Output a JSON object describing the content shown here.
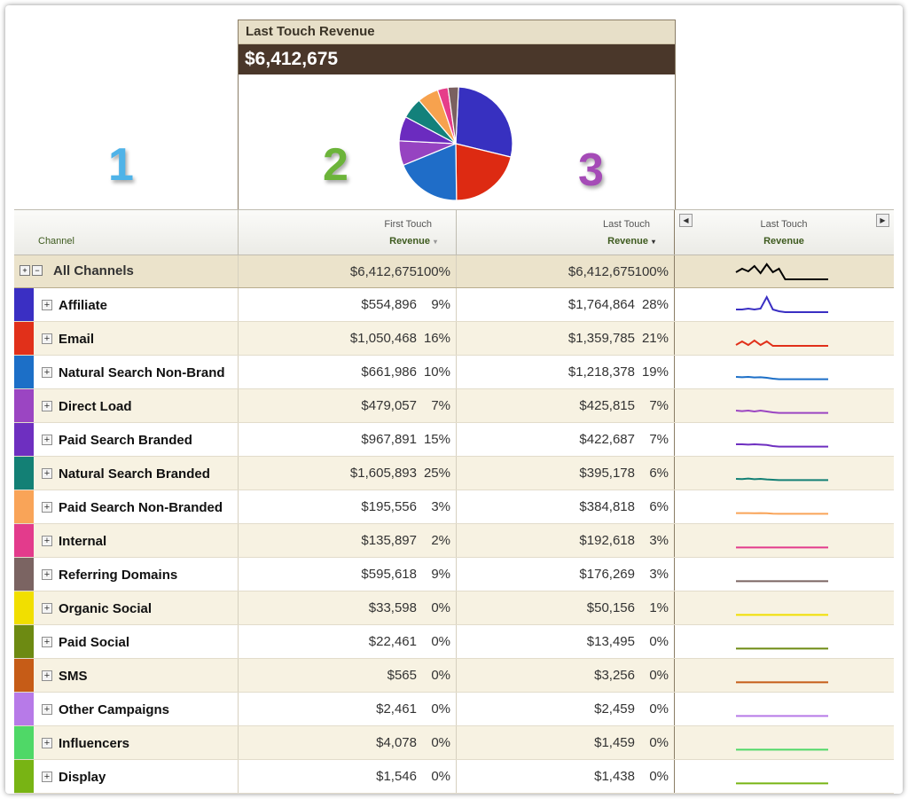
{
  "panel": {
    "title": "Last Touch Revenue",
    "value": "$6,412,675"
  },
  "annotations": [
    {
      "label": "1",
      "color": "#4fb3e8"
    },
    {
      "label": "2",
      "color": "#6cb43a"
    },
    {
      "label": "3",
      "color": "#a54bb7"
    }
  ],
  "pie": [
    {
      "value": 28,
      "color": "#3730c0"
    },
    {
      "value": 21,
      "color": "#dd2a12"
    },
    {
      "value": 19,
      "color": "#1f6dc8"
    },
    {
      "value": 7,
      "color": "#9643c1"
    },
    {
      "value": 7,
      "color": "#6b2bbf"
    },
    {
      "value": 6,
      "color": "#13817b"
    },
    {
      "value": 6,
      "color": "#f7a24e"
    },
    {
      "value": 3,
      "color": "#e63d8a"
    },
    {
      "value": 3,
      "color": "#7a6060"
    }
  ],
  "header": {
    "channel": "Channel",
    "first_top": "First Touch",
    "first_bottom": "Revenue",
    "last_top": "Last Touch",
    "last_bottom": "Revenue",
    "spark_top": "Last Touch",
    "spark_bottom": "Revenue"
  },
  "all": {
    "name": "All Channels",
    "first": "$6,412,675",
    "first_pct": "100%",
    "last": "$6,412,675",
    "last_pct": "100%",
    "color": "#000000",
    "trend": [
      0.55,
      0.75,
      0.6,
      0.9,
      0.5,
      1.0,
      0.55,
      0.75,
      0.15,
      0.15,
      0.15,
      0.15,
      0.15,
      0.15,
      0.15,
      0.15
    ]
  },
  "rows": [
    {
      "name": "Affiliate",
      "color": "#3a2fc3",
      "first": "$554,896",
      "first_pct": "9%",
      "last": "$1,764,864",
      "last_pct": "28%",
      "trend": [
        0.3,
        0.3,
        0.35,
        0.3,
        0.35,
        1.0,
        0.3,
        0.2,
        0.15,
        0.15,
        0.15,
        0.15,
        0.15,
        0.15,
        0.15,
        0.15
      ]
    },
    {
      "name": "Email",
      "color": "#e1301a",
      "first": "$1,050,468",
      "first_pct": "16%",
      "last": "$1,359,785",
      "last_pct": "21%",
      "trend": [
        0.2,
        0.4,
        0.2,
        0.45,
        0.2,
        0.4,
        0.15,
        0.15,
        0.15,
        0.15,
        0.15,
        0.15,
        0.15,
        0.15,
        0.15,
        0.15
      ]
    },
    {
      "name": "Natural Search Non-Brand",
      "color": "#1c6fc7",
      "first": "$661,986",
      "first_pct": "10%",
      "last": "$1,218,378",
      "last_pct": "19%",
      "trend": [
        0.3,
        0.28,
        0.3,
        0.27,
        0.28,
        0.25,
        0.2,
        0.17,
        0.17,
        0.17,
        0.17,
        0.17,
        0.17,
        0.17,
        0.17,
        0.17
      ]
    },
    {
      "name": "Direct Load",
      "color": "#9b45c2",
      "first": "$479,057",
      "first_pct": "7%",
      "last": "$425,815",
      "last_pct": "7%",
      "trend": [
        0.3,
        0.27,
        0.3,
        0.25,
        0.3,
        0.25,
        0.2,
        0.17,
        0.17,
        0.17,
        0.17,
        0.17,
        0.17,
        0.17,
        0.17,
        0.17
      ]
    },
    {
      "name": "Paid Search Branded",
      "color": "#6e2fc0",
      "first": "$967,891",
      "first_pct": "15%",
      "last": "$422,687",
      "last_pct": "7%",
      "trend": [
        0.3,
        0.3,
        0.28,
        0.3,
        0.28,
        0.26,
        0.2,
        0.17,
        0.17,
        0.17,
        0.17,
        0.17,
        0.17,
        0.17,
        0.17,
        0.17
      ]
    },
    {
      "name": "Natural Search Branded",
      "color": "#138075",
      "first": "$1,605,893",
      "first_pct": "25%",
      "last": "$395,178",
      "last_pct": "6%",
      "trend": [
        0.25,
        0.24,
        0.27,
        0.23,
        0.25,
        0.22,
        0.2,
        0.18,
        0.18,
        0.18,
        0.18,
        0.18,
        0.18,
        0.18,
        0.18,
        0.18
      ]
    },
    {
      "name": "Paid Search Non-Branded",
      "color": "#f9a458",
      "first": "$195,556",
      "first_pct": "3%",
      "last": "$384,818",
      "last_pct": "6%",
      "trend": [
        0.22,
        0.22,
        0.22,
        0.21,
        0.22,
        0.21,
        0.19,
        0.18,
        0.18,
        0.18,
        0.18,
        0.18,
        0.18,
        0.18,
        0.18,
        0.18
      ]
    },
    {
      "name": "Internal",
      "color": "#e33b8c",
      "first": "$135,897",
      "first_pct": "2%",
      "last": "$192,618",
      "last_pct": "3%",
      "trend": [
        0.18,
        0.18,
        0.18,
        0.18,
        0.18,
        0.18,
        0.18,
        0.18,
        0.18,
        0.18,
        0.18,
        0.18,
        0.18,
        0.18,
        0.18,
        0.18
      ]
    },
    {
      "name": "Referring Domains",
      "color": "#7b6462",
      "first": "$595,618",
      "first_pct": "9%",
      "last": "$176,269",
      "last_pct": "3%",
      "trend": [
        0.18,
        0.18,
        0.18,
        0.18,
        0.18,
        0.18,
        0.18,
        0.18,
        0.18,
        0.18,
        0.18,
        0.18,
        0.18,
        0.18,
        0.18,
        0.18
      ]
    },
    {
      "name": "Organic Social",
      "color": "#f1df00",
      "first": "$33,598",
      "first_pct": "0%",
      "last": "$50,156",
      "last_pct": "1%",
      "trend": [
        0.18,
        0.18,
        0.18,
        0.18,
        0.18,
        0.18,
        0.18,
        0.18,
        0.18,
        0.18,
        0.18,
        0.18,
        0.18,
        0.18,
        0.18,
        0.18
      ]
    },
    {
      "name": "Paid Social",
      "color": "#6d8a12",
      "first": "$22,461",
      "first_pct": "0%",
      "last": "$13,495",
      "last_pct": "0%",
      "trend": [
        0.18,
        0.18,
        0.18,
        0.18,
        0.18,
        0.18,
        0.18,
        0.18,
        0.18,
        0.18,
        0.18,
        0.18,
        0.18,
        0.18,
        0.18,
        0.18
      ]
    },
    {
      "name": "SMS",
      "color": "#c65c17",
      "first": "$565",
      "first_pct": "0%",
      "last": "$3,256",
      "last_pct": "0%",
      "trend": [
        0.18,
        0.18,
        0.18,
        0.18,
        0.18,
        0.18,
        0.18,
        0.18,
        0.18,
        0.18,
        0.18,
        0.18,
        0.18,
        0.18,
        0.18,
        0.18
      ]
    },
    {
      "name": "Other Campaigns",
      "color": "#b77ae8",
      "first": "$2,461",
      "first_pct": "0%",
      "last": "$2,459",
      "last_pct": "0%",
      "trend": [
        0.18,
        0.18,
        0.18,
        0.18,
        0.18,
        0.18,
        0.18,
        0.18,
        0.18,
        0.18,
        0.18,
        0.18,
        0.18,
        0.18,
        0.18,
        0.18
      ]
    },
    {
      "name": "Influencers",
      "color": "#4fd867",
      "first": "$4,078",
      "first_pct": "0%",
      "last": "$1,459",
      "last_pct": "0%",
      "trend": [
        0.18,
        0.18,
        0.18,
        0.18,
        0.18,
        0.18,
        0.18,
        0.18,
        0.18,
        0.18,
        0.18,
        0.18,
        0.18,
        0.18,
        0.18,
        0.18
      ]
    },
    {
      "name": "Display",
      "color": "#78b414",
      "first": "$1,546",
      "first_pct": "0%",
      "last": "$1,438",
      "last_pct": "0%",
      "trend": [
        0.18,
        0.18,
        0.18,
        0.18,
        0.18,
        0.18,
        0.18,
        0.18,
        0.18,
        0.18,
        0.18,
        0.18,
        0.18,
        0.18,
        0.18,
        0.18
      ]
    }
  ]
}
